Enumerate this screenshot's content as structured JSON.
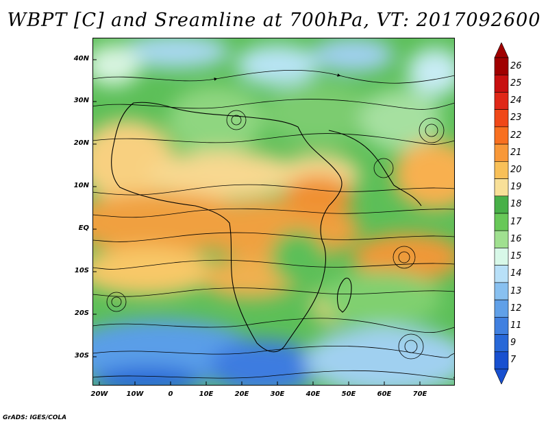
{
  "title": "WBPT [C] and Sreamline at 700hPa, VT: 2017092600",
  "lat_labels": [
    "40N",
    "30N",
    "20N",
    "10N",
    "EQ",
    "10S",
    "20S",
    "30S"
  ],
  "lon_labels": [
    "20W",
    "10W",
    "0",
    "10E",
    "20E",
    "30E",
    "40E",
    "50E",
    "60E",
    "70E"
  ],
  "colorbar": {
    "labels": [
      "26",
      "25",
      "24",
      "23",
      "22",
      "21",
      "20",
      "19",
      "18",
      "17",
      "16",
      "15",
      "14",
      "13",
      "12",
      "11",
      "9",
      "7"
    ],
    "colors": [
      "#a00000",
      "#c81010",
      "#e02818",
      "#f04818",
      "#f87020",
      "#f89838",
      "#f8c058",
      "#f8e098",
      "#48b048",
      "#68c858",
      "#a0e090",
      "#d8f8e8",
      "#b8e0f8",
      "#88c0f0",
      "#60a0e8",
      "#4080e0",
      "#2868d8",
      "#1850d0"
    ]
  },
  "credit": "GrADS: IGES/COLA"
}
